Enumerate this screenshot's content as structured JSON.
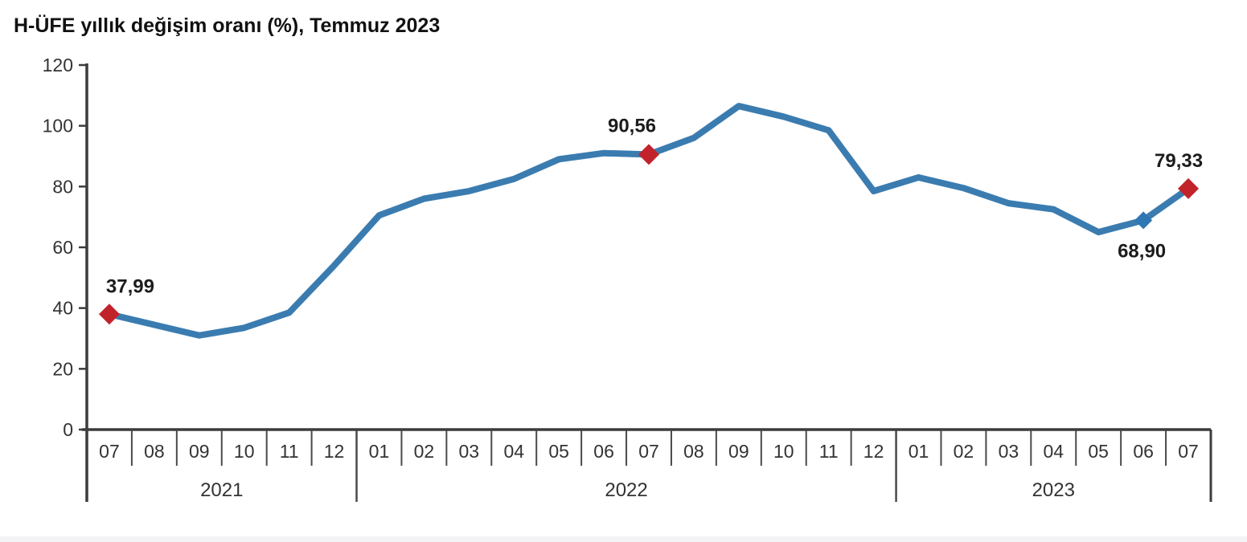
{
  "title": "H-ÜFE yıllık değişim oranı (%), Temmuz 2023",
  "colors": {
    "line": "#3b7cb0",
    "marker_red": "#c2232a",
    "marker_blue": "#2f76b5",
    "axis": "#3c3c3c",
    "tick_text": "#333333",
    "label_text": "#1c1c1c",
    "bottom_strip": "#f3f3f6"
  },
  "chart_data": {
    "type": "line",
    "title": "H-ÜFE yıllık değişim oranı (%), Temmuz 2023",
    "xlabel": "",
    "ylabel": "",
    "unit": "%",
    "grid": false,
    "legend": "none",
    "ylim": [
      0,
      120
    ],
    "yticks": [
      0,
      20,
      40,
      60,
      80,
      100,
      120
    ],
    "month_labels": [
      "07",
      "08",
      "09",
      "10",
      "11",
      "12",
      "01",
      "02",
      "03",
      "04",
      "05",
      "06",
      "07",
      "08",
      "09",
      "10",
      "11",
      "12",
      "01",
      "02",
      "03",
      "04",
      "05",
      "06",
      "07"
    ],
    "year_groups": [
      {
        "label": "2021",
        "months": 6
      },
      {
        "label": "2022",
        "months": 12
      },
      {
        "label": "2023",
        "months": 7
      }
    ],
    "categories": [
      "2021-07",
      "2021-08",
      "2021-09",
      "2021-10",
      "2021-11",
      "2021-12",
      "2022-01",
      "2022-02",
      "2022-03",
      "2022-04",
      "2022-05",
      "2022-06",
      "2022-07",
      "2022-08",
      "2022-09",
      "2022-10",
      "2022-11",
      "2022-12",
      "2023-01",
      "2023-02",
      "2023-03",
      "2023-04",
      "2023-05",
      "2023-06",
      "2023-07"
    ],
    "series": [
      {
        "name": "H-ÜFE yıllık değişim oranı (%)",
        "values": [
          37.99,
          34.5,
          31.0,
          33.5,
          38.5,
          54.0,
          70.5,
          76.0,
          78.5,
          82.5,
          89.0,
          91.0,
          90.56,
          96.0,
          106.5,
          103.0,
          98.5,
          78.5,
          83.0,
          79.5,
          74.5,
          72.5,
          65.0,
          68.9,
          79.33
        ]
      }
    ],
    "highlight_points": [
      {
        "index": 0,
        "category": "2021-07",
        "value": 37.99,
        "label": "37,99",
        "marker": "diamond",
        "marker_color": "#c2232a",
        "label_position": "above"
      },
      {
        "index": 12,
        "category": "2022-07",
        "value": 90.56,
        "label": "90,56",
        "marker": "diamond",
        "marker_color": "#c2232a",
        "label_position": "above"
      },
      {
        "index": 23,
        "category": "2023-06",
        "value": 68.9,
        "label": "68,90",
        "marker": "diamond",
        "marker_color": "#2f76b5",
        "label_position": "below"
      },
      {
        "index": 24,
        "category": "2023-07",
        "value": 79.33,
        "label": "79,33",
        "marker": "diamond",
        "marker_color": "#c2232a",
        "label_position": "above"
      }
    ]
  }
}
